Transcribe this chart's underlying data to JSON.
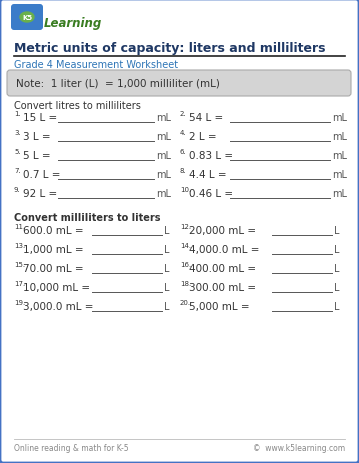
{
  "title": "Metric units of capacity: liters and milliliters",
  "subtitle": "Grade 4 Measurement Worksheet",
  "note": "Note:  1 liter (L)  = 1,000 milliliter (mL)",
  "section1_header": "Convert litres to milliliters",
  "section2_header": "Convert milliliters to liters",
  "col1_problems": [
    {
      "num": "1.",
      "text": "15 L = ",
      "unit": "mL"
    },
    {
      "num": "3.",
      "text": "3 L = ",
      "unit": "mL"
    },
    {
      "num": "5.",
      "text": "5 L = ",
      "unit": "mL"
    },
    {
      "num": "7.",
      "text": "0.7 L = ",
      "unit": "mL"
    },
    {
      "num": "9.",
      "text": "92 L = ",
      "unit": "mL"
    }
  ],
  "col2_problems": [
    {
      "num": "2.",
      "text": "54 L = ",
      "unit": "mL"
    },
    {
      "num": "4.",
      "text": "2 L = ",
      "unit": "mL"
    },
    {
      "num": "6.",
      "text": "0.83 L = ",
      "unit": "mL"
    },
    {
      "num": "8.",
      "text": "4.4 L = ",
      "unit": "mL"
    },
    {
      "num": "10.",
      "text": "0.46 L = ",
      "unit": "mL"
    }
  ],
  "col3_problems": [
    {
      "num": "11.",
      "text": "600.0 mL = ",
      "unit": "L"
    },
    {
      "num": "13.",
      "text": "1,000 mL = ",
      "unit": "L"
    },
    {
      "num": "15.",
      "text": "70.00 mL = ",
      "unit": "L"
    },
    {
      "num": "17.",
      "text": "10,000 mL = ",
      "unit": "L"
    },
    {
      "num": "19.",
      "text": "3,000.0 mL = ",
      "unit": "L"
    }
  ],
  "col4_problems": [
    {
      "num": "12.",
      "text": "20,000 mL = ",
      "unit": "L"
    },
    {
      "num": "14.",
      "text": "4,000.0 mL = ",
      "unit": "L"
    },
    {
      "num": "16.",
      "text": "400.00 mL = ",
      "unit": "L"
    },
    {
      "num": "18.",
      "text": "300.00 mL = ",
      "unit": "L"
    },
    {
      "num": "20.",
      "text": "5,000 mL = ",
      "unit": "L"
    }
  ],
  "footer_left": "Online reading & math for K-5",
  "footer_right": "©  www.k5learning.com",
  "border_color": "#4472c4",
  "title_color": "#1f3864",
  "subtitle_color": "#2e75b6",
  "note_color": "#333333",
  "note_bg": "#d4d4d4",
  "header_color": "#333333",
  "problem_color": "#333333",
  "unit_color": "#555555",
  "footer_color": "#888888",
  "line_color": "#555555",
  "bg_color": "#ffffff"
}
